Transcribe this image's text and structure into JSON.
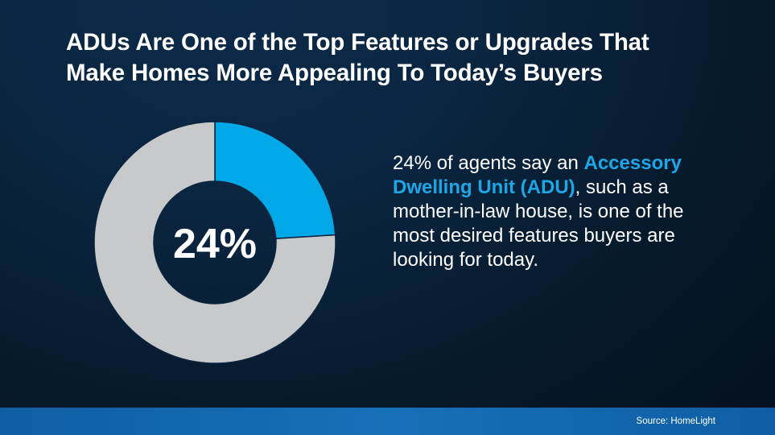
{
  "title": {
    "line1": "ADUs Are One of the Top Features or Upgrades That",
    "line2": "Make Homes More Appealing To Today’s Buyers"
  },
  "chart_data": {
    "type": "pie",
    "donut": true,
    "slices": [
      {
        "value": 24,
        "color": "#00a8e8"
      },
      {
        "value": 76,
        "color": "#c8c9cb"
      }
    ],
    "center_label": "24%"
  },
  "description": {
    "lead": "24% of agents say an",
    "highlight": "Accessory Dwelling Unit (ADU)",
    "rest": ", such as a mother-in-law house, is one of the most desired features buyers are looking for today.",
    "highlight_color": "#1ea7e6"
  },
  "footer": {
    "source": "Source: HomeLight"
  }
}
